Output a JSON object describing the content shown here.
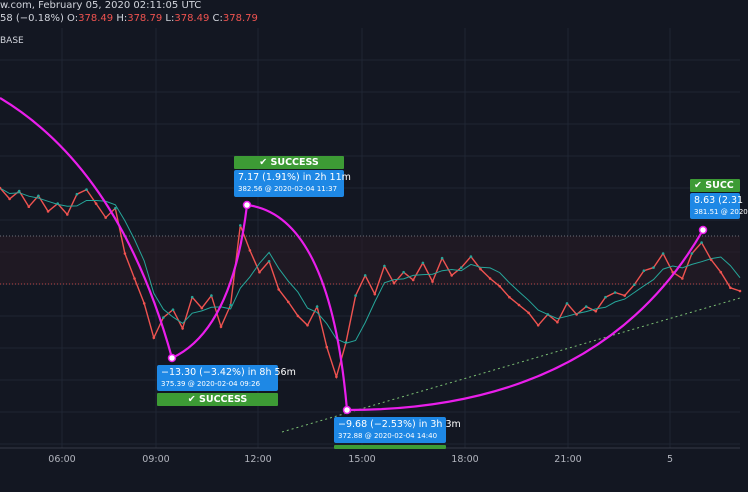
{
  "header": {
    "title_fragment": "w.com, February 05, 2020 02:11:05 UTC",
    "change": "58 (−0.18%)",
    "o_label": "O:",
    "o_value": "378.49",
    "h_label": "H:",
    "h_value": "378.79",
    "l_label": "L:",
    "l_value": "378.49",
    "c_label": "C:",
    "c_value": "378.79",
    "symbol_fragment": "BASE"
  },
  "colors": {
    "background": "#131722",
    "candle_down": "#ef5350",
    "candle_up": "#26a69a",
    "arc": "#e91eeb",
    "success": "#3d9b35",
    "callout": "#1e88e5"
  },
  "chart_data": {
    "type": "line",
    "ylim": [
      370,
      390
    ],
    "x_tick_labels": [
      "06:00",
      "09:00",
      "12:00",
      "15:00",
      "18:00",
      "21:00",
      "5"
    ],
    "grid": true,
    "series": [
      {
        "values": [
          385.0,
          384.3,
          384.8,
          383.8,
          384.5,
          383.5,
          384.0,
          383.3,
          384.6,
          384.9,
          384.0,
          383.1,
          383.7,
          380.8,
          379.2,
          377.6,
          375.4,
          376.7,
          377.2,
          376.0,
          378.0,
          377.3,
          378.1,
          376.1,
          377.5,
          382.6,
          381.0,
          379.6,
          380.3,
          378.5,
          377.7,
          376.8,
          376.2,
          377.4,
          374.8,
          372.9,
          375.1,
          378.1,
          379.4,
          378.2,
          380.0,
          378.9,
          379.6,
          379.1,
          380.2,
          379.0,
          380.5,
          379.4,
          379.9,
          380.6,
          379.8,
          379.2,
          378.7,
          378.0,
          377.5,
          377.0,
          376.2,
          376.9,
          376.4,
          377.6,
          376.9,
          377.4,
          377.1,
          378.0,
          378.3,
          378.1,
          378.8,
          379.7,
          379.9,
          380.8,
          379.6,
          379.2,
          380.8,
          381.5,
          380.4,
          379.6,
          378.6,
          378.4
        ]
      }
    ],
    "annotations": [
      {
        "status": "SUCCESS",
        "line1": "−13.30 (−3.42%) in 8h 56m",
        "line2": "375.39 @ 2020-02-04  09:26"
      },
      {
        "status": "SUCCESS",
        "line1": "7.17 (1.91%) in 2h 11m",
        "line2": "382.56 @ 2020-02-04  11:37"
      },
      {
        "status": "",
        "line1": "−9.68 (−2.53%) in 3h 3m",
        "line2": "372.88 @ 2020-02-04  14:40"
      },
      {
        "status": "SUCC",
        "line1": "8.63 (2.31",
        "line2": "381.51 @ 2020"
      }
    ]
  }
}
